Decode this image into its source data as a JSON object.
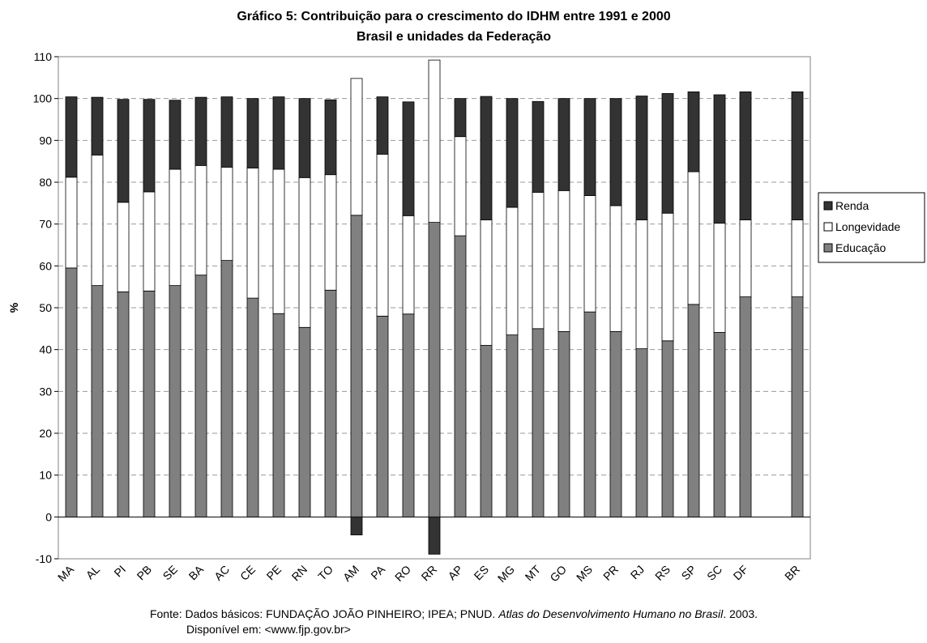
{
  "chart_data": {
    "type": "stacked_bar",
    "title": "Gráfico 5: Contribuição para o crescimento do IDHM entre 1991 e 2000",
    "subtitle": "Brasil e unidades da Federação",
    "y_label": "%",
    "categories": [
      "MA",
      "AL",
      "PI",
      "PB",
      "SE",
      "BA",
      "AC",
      "CE",
      "PE",
      "RN",
      "TO",
      "AM",
      "PA",
      "RO",
      "RR",
      "AP",
      "ES",
      "MG",
      "MT",
      "GO",
      "MS",
      "PR",
      "RJ",
      "RS",
      "SP",
      "SC",
      "DF",
      null,
      "BR"
    ],
    "series": [
      {
        "name": "Educação",
        "color": "#808080",
        "values": [
          59.5,
          55.3,
          53.8,
          54,
          55.3,
          57.8,
          61.3,
          52.3,
          48.6,
          45.3,
          54.2,
          72.1,
          48,
          48.5,
          70.4,
          67.2,
          41,
          43.5,
          45,
          44.3,
          49,
          44.3,
          40.2,
          42.1,
          50.8,
          44.1,
          52.6,
          null,
          52.6
        ]
      },
      {
        "name": "Longevidade",
        "color": "#ffffff",
        "values": [
          21.7,
          31.2,
          21.4,
          23.7,
          27.8,
          26.2,
          22.3,
          31.1,
          34.5,
          35.8,
          27.6,
          32.7,
          38.7,
          23.5,
          38.8,
          23.7,
          30,
          30.5,
          32.6,
          33.7,
          27.8,
          30.1,
          30.8,
          30.5,
          31.7,
          26.1,
          18.4,
          null,
          18.4
        ]
      },
      {
        "name": "Renda",
        "color": "#333333",
        "values": [
          19.2,
          13.8,
          24.6,
          22.1,
          16.5,
          16.3,
          16.8,
          16.6,
          17.3,
          18.9,
          17.9,
          -4.3,
          13.7,
          27.2,
          -8.9,
          9.1,
          29.5,
          26,
          21.7,
          22,
          23.2,
          25.6,
          29.6,
          28.6,
          19.1,
          30.7,
          30.6,
          null,
          30.6
        ]
      }
    ],
    "ylim": [
      -10,
      110
    ],
    "yticks": [
      -10,
      0,
      10,
      20,
      30,
      40,
      50,
      60,
      70,
      80,
      90,
      100,
      110
    ],
    "grid": true,
    "legend": "right",
    "source": {
      "prefix": "Fonte: Dados básicos: FUNDAÇÃO JOÃO PINHEIRO; IPEA; PNUD. ",
      "italic": "Atlas do Desenvolvimento Humano no Brasil",
      "suffix": ". 2003.",
      "line2": "Disponível em: <www.fjp.gov.br>"
    }
  }
}
